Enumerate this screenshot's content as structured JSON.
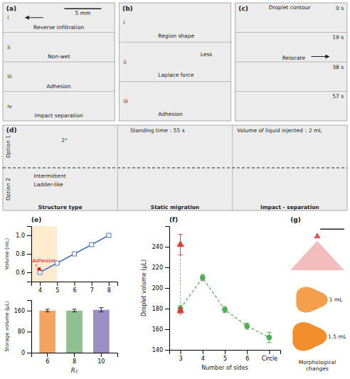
{
  "chart_data": [
    {
      "type": "diagram",
      "title": "(a)",
      "annotations": [
        "i",
        "Reverse infiltration",
        "ii",
        "Non-wet",
        "iii",
        "Adhesion",
        "iv",
        "Impact separation",
        "5 mm"
      ]
    },
    {
      "type": "diagram",
      "title": "(b)",
      "annotations": [
        "i",
        "Region shape",
        "ii",
        "Laplace force",
        "iii",
        "Adhesion",
        "Less"
      ]
    },
    {
      "type": "diagram",
      "title": "(c)",
      "annotations": [
        "Droplet contour",
        "0 s",
        "19 s",
        "38 s",
        "57 s",
        "Relocate"
      ]
    },
    {
      "type": "diagram",
      "title": "(d)",
      "annotations": [
        "Option 1",
        "Option 2",
        "Structure type",
        "Static migration",
        "Impact - separation",
        "Standing time：55 s",
        "Volume of liquid injected：2 mL",
        "2°",
        "Intermittent",
        "Ladder-like"
      ]
    },
    {
      "type": "line",
      "title": "(e)",
      "ylabel": "Volume (mL)",
      "x": [
        4,
        5,
        6,
        7,
        8
      ],
      "values": [
        0.6,
        0.7,
        0.8,
        0.9,
        1.0
      ],
      "color": "#4472C4",
      "marker": "square",
      "xlim": [
        3.5,
        8.5
      ],
      "xticks": [
        4,
        5,
        6,
        7,
        8
      ],
      "ylim": [
        0.5,
        1.1
      ],
      "yticks": [
        0.6,
        0.8,
        {
          "value": 1.0,
          "label": "1.0"
        }
      ],
      "highlight_x": [
        3.5,
        5.0
      ],
      "highlight_color": "#FFDDB0",
      "annotations": [
        {
          "text": "Adhesion",
          "x": 3.55,
          "y": 0.705,
          "arrow_from": [
            3.75,
            0.685
          ],
          "arrow_to": [
            4.05,
            0.615
          ],
          "color": "red"
        }
      ]
    },
    {
      "type": "bar",
      "categories": [
        "6",
        "8",
        "10"
      ],
      "values": [
        160,
        160,
        163
      ],
      "errors": [
        5,
        5,
        8
      ],
      "colors": [
        "#F4A460",
        "#90C090",
        "#9B8EC4"
      ],
      "xlabel": "R₂",
      "ylabel": "Storage volume (μL)",
      "ylim": [
        0,
        200
      ],
      "yticks": [
        0,
        80,
        160
      ]
    },
    {
      "type": "line",
      "title": "(f)",
      "xlabel": "Number of sides",
      "ylabel": "Droplet volume (μL)",
      "xlim": [
        2.5,
        7.5
      ],
      "xticks": [
        3,
        4,
        5,
        6,
        {
          "value": 7,
          "label": "Circle"
        }
      ],
      "ylim": [
        140,
        260
      ],
      "yticks": [
        140,
        160,
        180,
        200,
        220,
        240
      ],
      "series": [
        {
          "type": "line",
          "x": [
            3,
            4,
            5,
            6,
            7
          ],
          "values": [
            180,
            210,
            179,
            163,
            152
          ],
          "errors": [
            3,
            3,
            3,
            3,
            5
          ],
          "color": "#4CAF50",
          "marker": "circle",
          "line_style": "dashed"
        },
        {
          "type": "scatter",
          "x": [
            3,
            3
          ],
          "values": [
            242,
            178
          ],
          "errors": [
            10,
            3
          ],
          "color": "#E53935",
          "marker": "triangle"
        }
      ]
    },
    {
      "type": "diagram",
      "title": "(g)",
      "annotations": [
        "1 mL",
        "1.5 mL",
        "Morphological\nchanges"
      ]
    }
  ]
}
